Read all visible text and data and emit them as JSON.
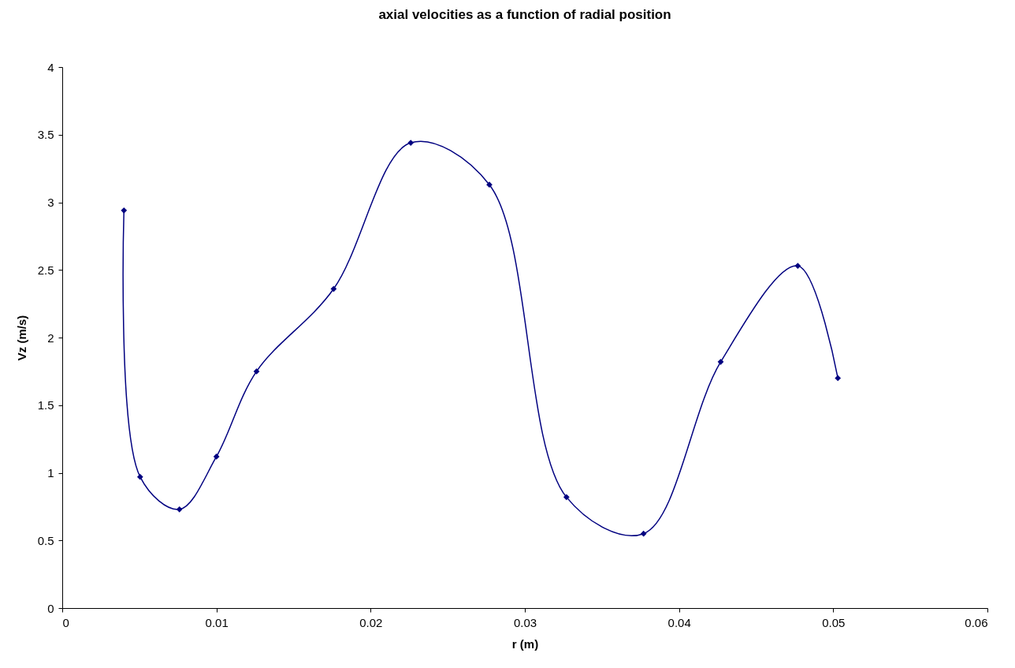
{
  "chart_data": {
    "type": "line",
    "title": "axial velocities as a function of radial position",
    "xlabel": "r (m)",
    "ylabel": "Vz (m/s)",
    "x": [
      0.004,
      0.00505,
      0.0076,
      0.01,
      0.0126,
      0.0176,
      0.0226,
      0.0277,
      0.0327,
      0.0377,
      0.0427,
      0.0477,
      0.0503
    ],
    "series": [
      {
        "color": "#000080",
        "values": [
          2.94,
          0.97,
          0.73,
          1.12,
          1.75,
          2.36,
          3.44,
          3.13,
          0.82,
          0.55,
          1.82,
          2.53,
          1.7
        ]
      }
    ],
    "xlim": [
      0,
      0.06
    ],
    "ylim": [
      0,
      4
    ],
    "xticks": [
      0,
      0.01,
      0.02,
      0.03,
      0.04,
      0.05,
      0.06
    ],
    "yticks": [
      0,
      0.5,
      1,
      1.5,
      2,
      2.5,
      3,
      3.5,
      4
    ],
    "marker": "diamond",
    "line_style": "solid"
  }
}
